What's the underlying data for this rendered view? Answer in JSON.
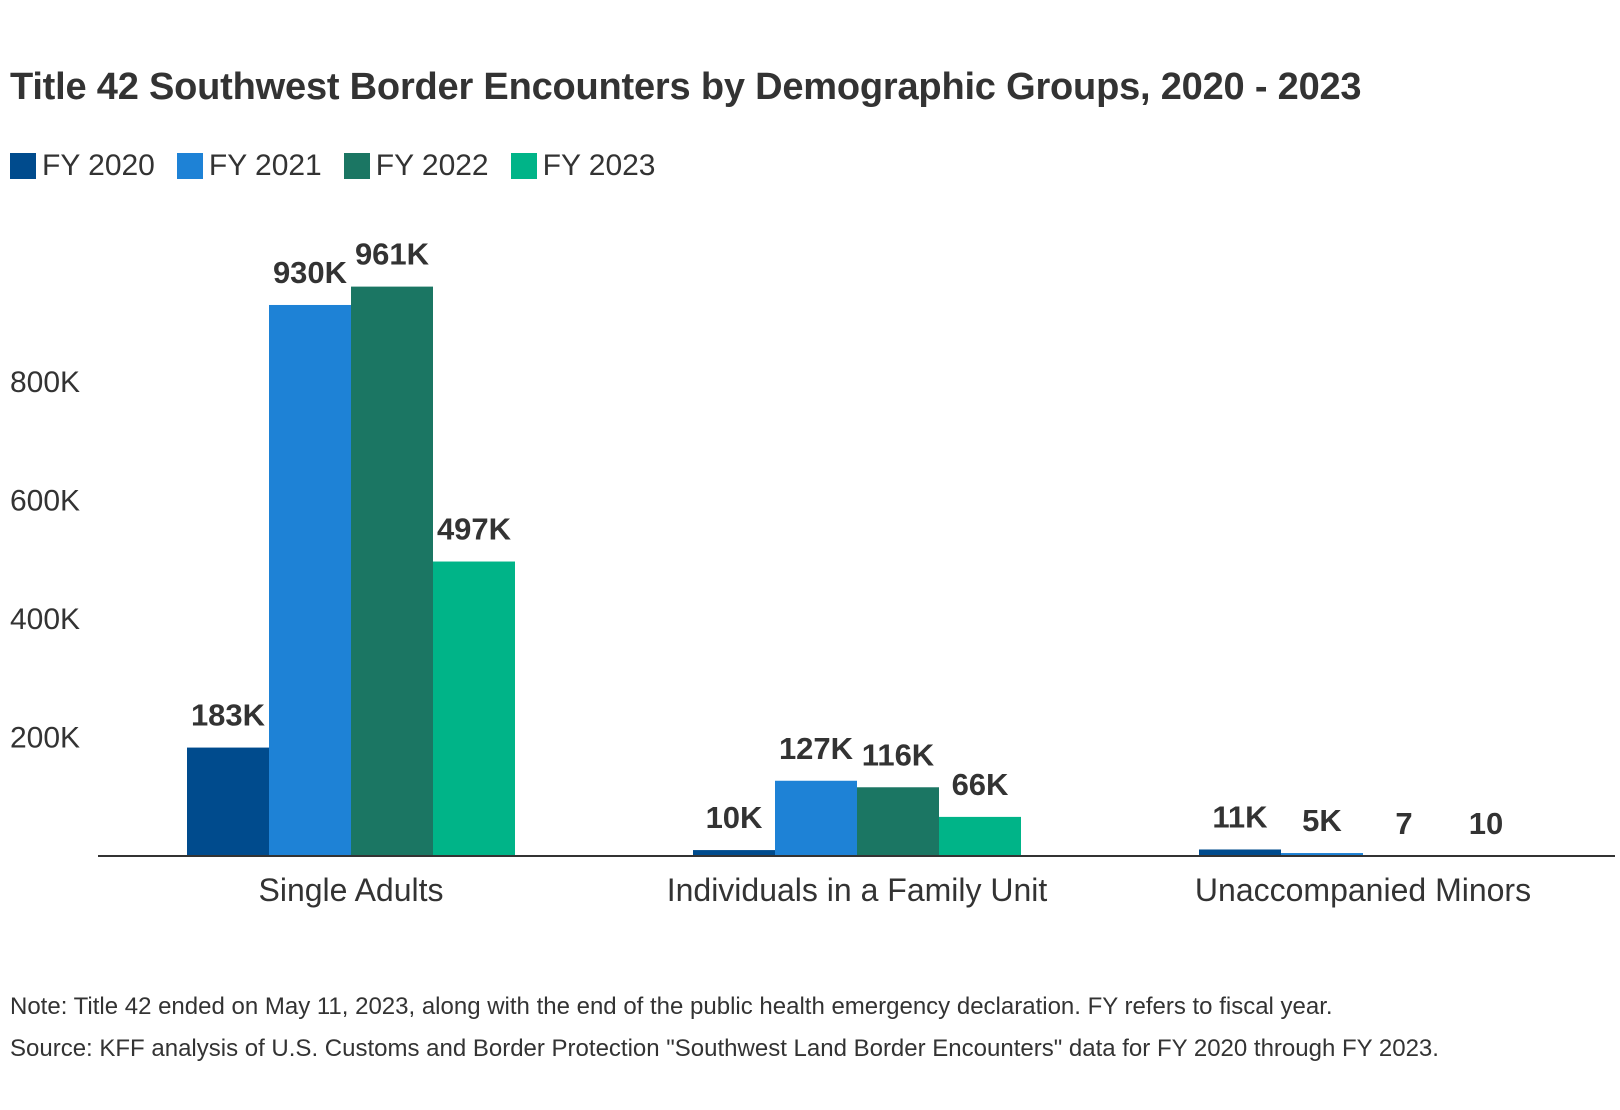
{
  "title": "Title 42 Southwest Border Encounters by Demographic Groups, 2020 - 2023",
  "legend": [
    {
      "label": "FY 2020",
      "color": "#004b8d"
    },
    {
      "label": "FY 2021",
      "color": "#1e82d6"
    },
    {
      "label": "FY 2022",
      "color": "#1b7663"
    },
    {
      "label": "FY 2023",
      "color": "#00b488"
    }
  ],
  "note": "Note: Title 42 ended on May 11, 2023, along with the end of the public health emergency declaration. FY refers to fiscal year.",
  "source": "Source: KFF analysis of U.S. Customs and Border Protection \"Southwest Land Border Encounters\" data for FY 2020 through FY 2023.",
  "chart_data": {
    "type": "bar",
    "title": "Title 42 Southwest Border Encounters by Demographic Groups, 2020 - 2023",
    "xlabel": "",
    "ylabel": "",
    "categories": [
      "Single Adults",
      "Individuals in a Family Unit",
      "Unaccompanied Minors"
    ],
    "series": [
      {
        "name": "FY 2020",
        "color": "#004b8d",
        "values": [
          183000,
          10000,
          11000
        ],
        "labels": [
          "183K",
          "10K",
          "11K"
        ]
      },
      {
        "name": "FY 2021",
        "color": "#1e82d6",
        "values": [
          930000,
          127000,
          5000
        ],
        "labels": [
          "930K",
          "127K",
          "5K"
        ]
      },
      {
        "name": "FY 2022",
        "color": "#1b7663",
        "values": [
          961000,
          116000,
          7
        ],
        "labels": [
          "961K",
          "116K",
          "7"
        ]
      },
      {
        "name": "FY 2023",
        "color": "#00b488",
        "values": [
          497000,
          66000,
          10
        ],
        "labels": [
          "497K",
          "66K",
          "10"
        ]
      }
    ],
    "yticks": [
      {
        "value": 200000,
        "label": "200K"
      },
      {
        "value": 400000,
        "label": "400K"
      },
      {
        "value": 600000,
        "label": "600K"
      },
      {
        "value": 800000,
        "label": "800K"
      }
    ],
    "ylim": [
      0,
      1000000
    ],
    "grid": false,
    "legend_position": "top-left"
  }
}
